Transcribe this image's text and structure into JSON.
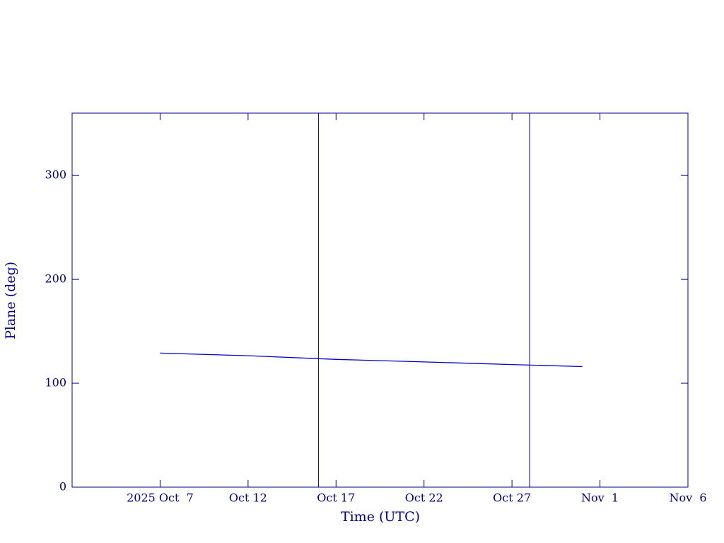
{
  "chart_data": {
    "type": "line",
    "x_label": "Time (UTC)",
    "y_label": "Plane (deg)",
    "x": [
      "2025-10-07",
      "2025-10-12",
      "2025-10-17",
      "2025-10-22",
      "2025-10-27",
      "2025-10-31"
    ],
    "series": [
      {
        "name": "Plane",
        "color": "#0000cd",
        "values": [
          129,
          126.5,
          123,
          120.5,
          118,
          116
        ]
      }
    ],
    "vlines": [
      "2025-10-16",
      "2025-10-28"
    ],
    "xlim": [
      "2025-10-02",
      "2025-11-06"
    ],
    "xticks": [
      {
        "value": "2025-10-07",
        "label": "2025 Oct  7"
      },
      {
        "value": "2025-10-12",
        "label": "Oct 12"
      },
      {
        "value": "2025-10-17",
        "label": "Oct 17"
      },
      {
        "value": "2025-10-22",
        "label": "Oct 22"
      },
      {
        "value": "2025-10-27",
        "label": "Oct 27"
      },
      {
        "value": "2025-11-01",
        "label": "Nov  1"
      },
      {
        "value": "2025-11-06",
        "label": "Nov  6"
      }
    ],
    "ylim": [
      0,
      360
    ],
    "yticks": [
      0,
      100,
      200,
      300
    ]
  }
}
